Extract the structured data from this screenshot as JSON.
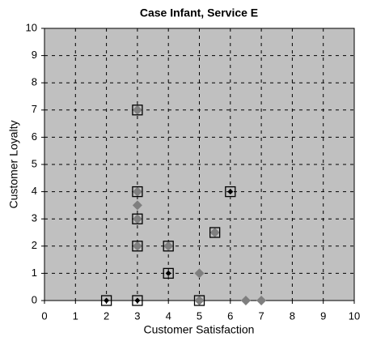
{
  "chart_data": {
    "type": "scatter",
    "title": "Case Infant, Service E",
    "xlabel": "Customer Satisfaction",
    "ylabel": "Customer Loyalty",
    "xlim": [
      0,
      10
    ],
    "ylim": [
      0,
      10
    ],
    "xticks": [
      0,
      1,
      2,
      3,
      4,
      5,
      6,
      7,
      8,
      9,
      10
    ],
    "yticks": [
      0,
      1,
      2,
      3,
      4,
      5,
      6,
      7,
      8,
      9,
      10
    ],
    "grid": true,
    "series": [
      {
        "color": "#7f7f7f",
        "marker": "diamond",
        "filled": true,
        "x": [
          3,
          3,
          3,
          3,
          3,
          4,
          5,
          5,
          5.5,
          6.5,
          7
        ],
        "values": [
          7,
          4,
          3.5,
          3,
          2,
          2,
          1,
          0,
          2.5,
          0,
          0
        ]
      },
      {
        "color": "#000000",
        "marker": "small-diamond",
        "filled": true,
        "x": [
          2,
          3,
          4,
          6
        ],
        "values": [
          0,
          0,
          1,
          4
        ]
      },
      {
        "color": "#000000",
        "marker": "square",
        "filled": false,
        "x": [
          2,
          3,
          3,
          3,
          3,
          3,
          4,
          4,
          5,
          5.5,
          6
        ],
        "values": [
          0,
          0,
          2,
          3,
          4,
          7,
          1,
          2,
          0,
          2.5,
          4
        ]
      }
    ]
  }
}
